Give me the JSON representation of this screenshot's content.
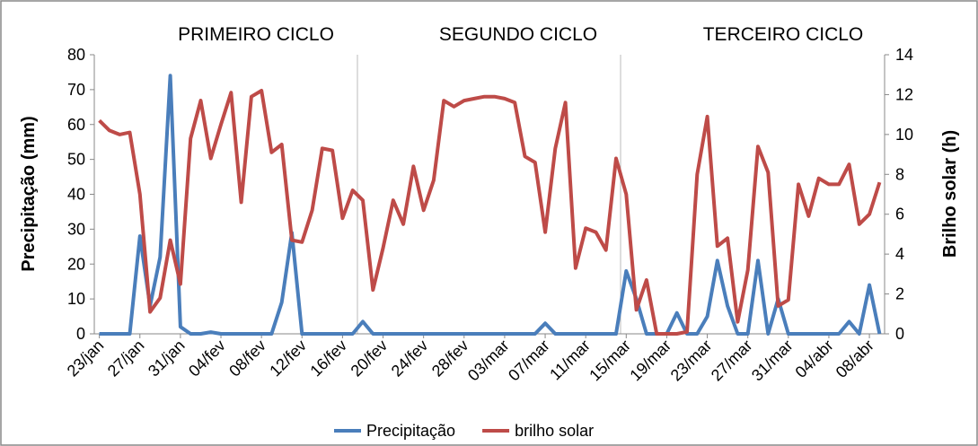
{
  "chart_data": {
    "type": "line",
    "annotations": [
      "PRIMEIRO CICLO",
      "SEGUNDO CICLO",
      "TERCEIRO CICLO"
    ],
    "ylabel": "Precipitação (mm)",
    "y2label": "Brilho solar (h)",
    "categories": [
      "23/jan",
      null,
      null,
      null,
      "27/jan",
      null,
      null,
      null,
      "31/jan",
      null,
      null,
      null,
      "04/fev",
      null,
      null,
      null,
      "08/fev",
      null,
      null,
      null,
      "12/fev",
      null,
      null,
      null,
      "16/fev",
      null,
      null,
      null,
      "20/fev",
      null,
      null,
      null,
      "24/fev",
      null,
      null,
      null,
      "28/fev",
      null,
      null,
      null,
      "03/mar",
      null,
      null,
      null,
      "07/mar",
      null,
      null,
      null,
      "11/mar",
      null,
      null,
      null,
      "15/mar",
      null,
      null,
      null,
      "19/mar",
      null,
      null,
      null,
      "23/mar",
      null,
      null,
      null,
      "27/mar",
      null,
      null,
      null,
      "31/mar",
      null,
      null,
      null,
      "04/abr",
      null,
      null,
      null,
      "08/abr",
      null
    ],
    "series": [
      {
        "name": "Precipitação",
        "color": "#4a7ebb",
        "axis": "y",
        "values": [
          0,
          0,
          0,
          0,
          28,
          8,
          22,
          74,
          2,
          0,
          0,
          0.5,
          0,
          0,
          0,
          0,
          0,
          0,
          9,
          29,
          0,
          0,
          0,
          0,
          0,
          0,
          3.5,
          0,
          0,
          0,
          0,
          0,
          0,
          0,
          0,
          0,
          0,
          0,
          0,
          0,
          0,
          0,
          0,
          0,
          3,
          0,
          0,
          0,
          0,
          0,
          0,
          0,
          18,
          10,
          0,
          0,
          0,
          6,
          0,
          0,
          5,
          21,
          8,
          0,
          0,
          21,
          0,
          10,
          0,
          0,
          0,
          0,
          0,
          0,
          3.5,
          0,
          14,
          0
        ]
      },
      {
        "name": "brilho solar",
        "color": "#be4b48",
        "axis": "y2",
        "values": [
          10.7,
          10.2,
          10.0,
          10.1,
          7.0,
          1.1,
          1.8,
          4.7,
          2.5,
          9.8,
          11.7,
          8.8,
          10.5,
          12.1,
          6.6,
          11.9,
          12.2,
          9.1,
          9.5,
          4.7,
          4.6,
          6.2,
          9.3,
          9.2,
          5.8,
          7.2,
          6.7,
          2.2,
          4.3,
          6.7,
          5.5,
          8.4,
          6.2,
          7.7,
          11.7,
          11.4,
          11.7,
          11.8,
          11.9,
          11.9,
          11.8,
          11.6,
          8.9,
          8.6,
          5.1,
          9.3,
          11.6,
          3.3,
          5.3,
          5.1,
          4.2,
          8.8,
          7.0,
          1.2,
          2.7,
          0,
          0,
          0,
          0.1,
          8.0,
          10.9,
          4.4,
          4.8,
          0.6,
          3.2,
          9.4,
          8.1,
          1.4,
          1.7,
          7.5,
          5.9,
          7.8,
          7.5,
          7.5,
          8.5,
          5.5,
          6.0,
          7.6
        ]
      }
    ],
    "ylim": [
      0,
      80
    ],
    "yticks": [
      0,
      10,
      20,
      30,
      40,
      50,
      60,
      70,
      80
    ],
    "y2lim": [
      0,
      14
    ],
    "y2ticks": [
      0,
      2,
      4,
      6,
      8,
      10,
      12,
      14
    ],
    "legend": "bottom"
  }
}
